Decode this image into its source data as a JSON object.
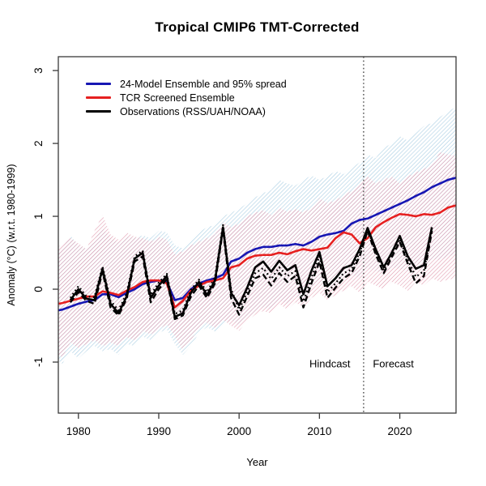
{
  "title": "Tropical CMIP6 TMT-Corrected",
  "chart_data": {
    "type": "line",
    "title": "Tropical CMIP6 TMT-Corrected",
    "xlabel": "Year",
    "ylabel": "Anomaly (°C) (w.r.t. 1980-1999)",
    "xlim": [
      1977.5,
      2027
    ],
    "ylim": [
      -1.7,
      3.19
    ],
    "x_ticks": [
      1980,
      1990,
      2000,
      2010,
      2020
    ],
    "y_ticks": [
      -1,
      0,
      1,
      2,
      3
    ],
    "grid": false,
    "legend_position": "top-left",
    "legend": [
      {
        "label": "24-Model Ensemble and 95% spread",
        "color": "#1717b3"
      },
      {
        "label": "TCR Screened Ensemble",
        "color": "#e62020"
      },
      {
        "label": "Observations (RSS/UAH/NOAA)",
        "color": "#000000"
      }
    ],
    "divider": {
      "x": 2015.5,
      "style": "dotted",
      "color": "#000000"
    },
    "annotations": [
      {
        "text": "Hindcast",
        "x": 2011.3,
        "y": -1.03
      },
      {
        "text": "Forecast",
        "x": 2019.2,
        "y": -1.03
      }
    ],
    "model_years": [
      1977,
      1978,
      1979,
      1980,
      1981,
      1982,
      1983,
      1984,
      1985,
      1986,
      1987,
      1988,
      1989,
      1990,
      1991,
      1992,
      1993,
      1994,
      1995,
      1996,
      1997,
      1998,
      1999,
      2000,
      2001,
      2002,
      2003,
      2004,
      2005,
      2006,
      2007,
      2008,
      2009,
      2010,
      2011,
      2012,
      2013,
      2014,
      2015,
      2016,
      2017,
      2018,
      2019,
      2020,
      2021,
      2022,
      2023,
      2024,
      2025,
      2026,
      2027
    ],
    "obs_years": [
      1979,
      1980,
      1981,
      1982,
      1983,
      1984,
      1985,
      1986,
      1987,
      1988,
      1989,
      1990,
      1991,
      1992,
      1993,
      1994,
      1995,
      1996,
      1997,
      1998,
      1999,
      2000,
      2001,
      2002,
      2003,
      2004,
      2005,
      2006,
      2007,
      2008,
      2009,
      2010,
      2011,
      2012,
      2013,
      2014,
      2015,
      2016,
      2017,
      2018,
      2019,
      2020,
      2021,
      2022,
      2023,
      2024
    ],
    "bands": [
      {
        "name": "24-model-ensemble-95-spread",
        "hatch_color": "#a6cce2",
        "upper": [
          0.5,
          0.56,
          0.74,
          0.6,
          0.55,
          0.68,
          0.84,
          0.7,
          0.64,
          0.72,
          0.7,
          0.74,
          0.7,
          0.8,
          0.78,
          0.6,
          0.56,
          0.65,
          0.78,
          0.85,
          0.88,
          1.0,
          1.05,
          1.1,
          1.18,
          1.26,
          1.32,
          1.36,
          1.5,
          1.45,
          1.42,
          1.5,
          1.56,
          1.5,
          1.55,
          1.62,
          1.58,
          1.66,
          1.74,
          1.85,
          1.8,
          1.94,
          2.0,
          2.1,
          2.04,
          2.14,
          2.24,
          2.28,
          2.36,
          2.44,
          2.5
        ],
        "lower": [
          -0.95,
          -1.02,
          -0.85,
          -0.95,
          -0.85,
          -0.78,
          -0.85,
          -0.82,
          -0.9,
          -0.75,
          -0.78,
          -0.65,
          -0.7,
          -0.6,
          -0.55,
          -0.75,
          -0.9,
          -0.78,
          -0.6,
          -0.52,
          -0.58,
          -0.48,
          -0.42,
          -0.5,
          -0.4,
          -0.3,
          -0.25,
          -0.28,
          -0.15,
          -0.2,
          -0.1,
          -0.15,
          0.0,
          0.1,
          0.0,
          0.08,
          0.15,
          0.2,
          0.15,
          0.28,
          0.25,
          0.22,
          0.3,
          0.28,
          0.25,
          0.35,
          0.3,
          0.42,
          0.4,
          0.45,
          0.47
        ]
      },
      {
        "name": "tcr-screened-spread",
        "hatch_color": "#e097ac",
        "upper": [
          0.55,
          0.62,
          0.7,
          0.63,
          0.55,
          0.8,
          1.02,
          0.75,
          0.68,
          0.78,
          0.72,
          0.7,
          0.65,
          0.72,
          0.68,
          0.48,
          0.52,
          0.6,
          0.65,
          0.7,
          0.75,
          0.92,
          0.85,
          0.9,
          1.0,
          1.05,
          1.08,
          1.02,
          1.12,
          1.06,
          1.1,
          1.05,
          1.12,
          1.25,
          1.18,
          1.22,
          1.28,
          1.35,
          1.45,
          1.55,
          1.45,
          1.5,
          1.55,
          1.45,
          1.55,
          1.6,
          1.65,
          1.7,
          1.88,
          1.85,
          1.83
        ],
        "lower": [
          -0.85,
          -0.94,
          -0.73,
          -0.81,
          -0.75,
          -0.7,
          -0.78,
          -0.73,
          -0.78,
          -0.66,
          -0.7,
          -0.57,
          -0.62,
          -0.55,
          -0.48,
          -0.64,
          -0.84,
          -0.7,
          -0.53,
          -0.46,
          -0.53,
          -0.42,
          -0.5,
          -0.57,
          -0.44,
          -0.35,
          -0.3,
          -0.33,
          -0.2,
          -0.28,
          -0.18,
          -0.25,
          -0.12,
          -0.05,
          -0.15,
          -0.08,
          -0.02,
          0.04,
          -0.05,
          0.1,
          0.05,
          0.0,
          0.1,
          0.05,
          -0.02,
          0.1,
          0.05,
          0.15,
          0.1,
          0.13,
          0.15
        ]
      }
    ],
    "series": [
      {
        "name": "24-Model Ensemble mean",
        "color": "#1717b3",
        "width": 2.6,
        "dash": "",
        "x": "model_years",
        "values": [
          -0.3,
          -0.28,
          -0.24,
          -0.2,
          -0.17,
          -0.15,
          -0.07,
          -0.07,
          -0.11,
          -0.05,
          0.0,
          0.07,
          0.1,
          0.12,
          0.1,
          -0.15,
          -0.12,
          0.0,
          0.08,
          0.12,
          0.15,
          0.2,
          0.38,
          0.42,
          0.5,
          0.55,
          0.58,
          0.58,
          0.6,
          0.6,
          0.62,
          0.6,
          0.65,
          0.72,
          0.75,
          0.77,
          0.8,
          0.9,
          0.95,
          0.97,
          1.02,
          1.07,
          1.12,
          1.17,
          1.22,
          1.28,
          1.33,
          1.4,
          1.45,
          1.5,
          1.53
        ]
      },
      {
        "name": "TCR Screened Ensemble mean",
        "color": "#e62020",
        "width": 2.6,
        "dash": "",
        "x": "model_years",
        "values": [
          -0.21,
          -0.19,
          -0.16,
          -0.13,
          -0.1,
          -0.1,
          -0.03,
          -0.05,
          -0.08,
          -0.02,
          0.03,
          0.1,
          0.12,
          0.12,
          0.08,
          -0.25,
          -0.16,
          -0.02,
          0.05,
          0.1,
          0.12,
          0.15,
          0.3,
          0.33,
          0.42,
          0.46,
          0.47,
          0.47,
          0.5,
          0.48,
          0.52,
          0.55,
          0.53,
          0.55,
          0.57,
          0.7,
          0.78,
          0.75,
          0.63,
          0.7,
          0.85,
          0.92,
          0.98,
          1.03,
          1.02,
          1.0,
          1.03,
          1.02,
          1.05,
          1.12,
          1.15
        ]
      },
      {
        "name": "Observations solid",
        "color": "#000000",
        "width": 2.6,
        "dash": "",
        "x": "obs_years",
        "values": [
          -0.15,
          0.0,
          -0.13,
          -0.15,
          0.28,
          -0.2,
          -0.33,
          -0.1,
          0.42,
          0.5,
          -0.12,
          0.05,
          0.18,
          -0.38,
          -0.33,
          -0.05,
          0.1,
          -0.08,
          0.12,
          0.85,
          -0.05,
          -0.22,
          0.02,
          0.3,
          0.38,
          0.24,
          0.39,
          0.26,
          0.33,
          -0.07,
          0.25,
          0.51,
          0.04,
          0.15,
          0.29,
          0.33,
          0.55,
          0.84,
          0.55,
          0.3,
          0.5,
          0.73,
          0.45,
          0.28,
          0.33,
          0.85
        ]
      },
      {
        "name": "Observations dashed",
        "color": "#000000",
        "width": 2.4,
        "dash": "7 4",
        "x": "obs_years",
        "values": [
          -0.18,
          -0.04,
          -0.16,
          -0.2,
          0.24,
          -0.25,
          -0.36,
          -0.13,
          0.38,
          0.45,
          -0.18,
          0.0,
          0.14,
          -0.41,
          -0.36,
          -0.1,
          0.05,
          -0.12,
          0.08,
          0.82,
          -0.12,
          -0.35,
          -0.1,
          0.15,
          0.2,
          0.05,
          0.22,
          0.1,
          0.18,
          -0.25,
          0.08,
          0.38,
          -0.12,
          0.02,
          0.15,
          0.22,
          0.45,
          0.8,
          0.48,
          0.22,
          0.44,
          0.65,
          0.35,
          0.08,
          0.18,
          0.8
        ]
      },
      {
        "name": "Observations dotted",
        "color": "#000000",
        "width": 2.3,
        "dash": "1.8 3.4",
        "x": "obs_years",
        "values": [
          -0.12,
          0.04,
          -0.1,
          -0.11,
          0.31,
          -0.16,
          -0.29,
          -0.06,
          0.45,
          0.53,
          -0.08,
          0.09,
          0.21,
          -0.34,
          -0.29,
          -0.01,
          0.13,
          -0.04,
          0.16,
          0.88,
          0.0,
          -0.28,
          -0.04,
          0.22,
          0.29,
          0.14,
          0.3,
          0.18,
          0.25,
          -0.17,
          0.16,
          0.45,
          -0.04,
          0.08,
          0.22,
          0.27,
          0.5,
          0.82,
          0.51,
          0.26,
          0.47,
          0.69,
          0.4,
          0.17,
          0.25,
          0.82
        ]
      }
    ]
  }
}
